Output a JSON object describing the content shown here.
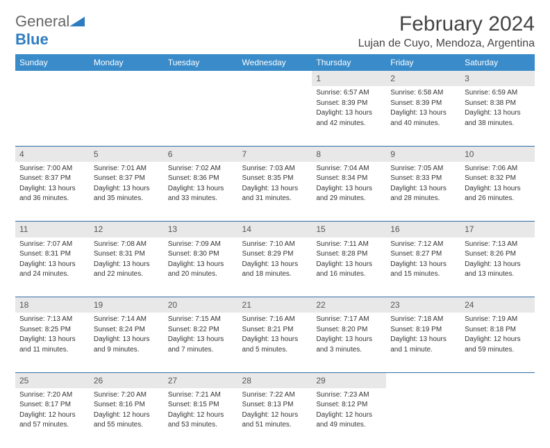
{
  "logo": {
    "general": "General",
    "blue": "Blue"
  },
  "title": "February 2024",
  "location": "Lujan de Cuyo, Mendoza, Argentina",
  "day_headers": [
    "Sunday",
    "Monday",
    "Tuesday",
    "Wednesday",
    "Thursday",
    "Friday",
    "Saturday"
  ],
  "colors": {
    "header_bg": "#3a8bc9",
    "header_text": "#ffffff",
    "daynum_bg": "#e8e8e8",
    "row_divider": "#2e6da4",
    "logo_blue": "#2e7cc0"
  },
  "weeks": [
    [
      null,
      null,
      null,
      null,
      {
        "n": "1",
        "sr": "Sunrise: 6:57 AM",
        "ss": "Sunset: 8:39 PM",
        "d1": "Daylight: 13 hours",
        "d2": "and 42 minutes."
      },
      {
        "n": "2",
        "sr": "Sunrise: 6:58 AM",
        "ss": "Sunset: 8:39 PM",
        "d1": "Daylight: 13 hours",
        "d2": "and 40 minutes."
      },
      {
        "n": "3",
        "sr": "Sunrise: 6:59 AM",
        "ss": "Sunset: 8:38 PM",
        "d1": "Daylight: 13 hours",
        "d2": "and 38 minutes."
      }
    ],
    [
      {
        "n": "4",
        "sr": "Sunrise: 7:00 AM",
        "ss": "Sunset: 8:37 PM",
        "d1": "Daylight: 13 hours",
        "d2": "and 36 minutes."
      },
      {
        "n": "5",
        "sr": "Sunrise: 7:01 AM",
        "ss": "Sunset: 8:37 PM",
        "d1": "Daylight: 13 hours",
        "d2": "and 35 minutes."
      },
      {
        "n": "6",
        "sr": "Sunrise: 7:02 AM",
        "ss": "Sunset: 8:36 PM",
        "d1": "Daylight: 13 hours",
        "d2": "and 33 minutes."
      },
      {
        "n": "7",
        "sr": "Sunrise: 7:03 AM",
        "ss": "Sunset: 8:35 PM",
        "d1": "Daylight: 13 hours",
        "d2": "and 31 minutes."
      },
      {
        "n": "8",
        "sr": "Sunrise: 7:04 AM",
        "ss": "Sunset: 8:34 PM",
        "d1": "Daylight: 13 hours",
        "d2": "and 29 minutes."
      },
      {
        "n": "9",
        "sr": "Sunrise: 7:05 AM",
        "ss": "Sunset: 8:33 PM",
        "d1": "Daylight: 13 hours",
        "d2": "and 28 minutes."
      },
      {
        "n": "10",
        "sr": "Sunrise: 7:06 AM",
        "ss": "Sunset: 8:32 PM",
        "d1": "Daylight: 13 hours",
        "d2": "and 26 minutes."
      }
    ],
    [
      {
        "n": "11",
        "sr": "Sunrise: 7:07 AM",
        "ss": "Sunset: 8:31 PM",
        "d1": "Daylight: 13 hours",
        "d2": "and 24 minutes."
      },
      {
        "n": "12",
        "sr": "Sunrise: 7:08 AM",
        "ss": "Sunset: 8:31 PM",
        "d1": "Daylight: 13 hours",
        "d2": "and 22 minutes."
      },
      {
        "n": "13",
        "sr": "Sunrise: 7:09 AM",
        "ss": "Sunset: 8:30 PM",
        "d1": "Daylight: 13 hours",
        "d2": "and 20 minutes."
      },
      {
        "n": "14",
        "sr": "Sunrise: 7:10 AM",
        "ss": "Sunset: 8:29 PM",
        "d1": "Daylight: 13 hours",
        "d2": "and 18 minutes."
      },
      {
        "n": "15",
        "sr": "Sunrise: 7:11 AM",
        "ss": "Sunset: 8:28 PM",
        "d1": "Daylight: 13 hours",
        "d2": "and 16 minutes."
      },
      {
        "n": "16",
        "sr": "Sunrise: 7:12 AM",
        "ss": "Sunset: 8:27 PM",
        "d1": "Daylight: 13 hours",
        "d2": "and 15 minutes."
      },
      {
        "n": "17",
        "sr": "Sunrise: 7:13 AM",
        "ss": "Sunset: 8:26 PM",
        "d1": "Daylight: 13 hours",
        "d2": "and 13 minutes."
      }
    ],
    [
      {
        "n": "18",
        "sr": "Sunrise: 7:13 AM",
        "ss": "Sunset: 8:25 PM",
        "d1": "Daylight: 13 hours",
        "d2": "and 11 minutes."
      },
      {
        "n": "19",
        "sr": "Sunrise: 7:14 AM",
        "ss": "Sunset: 8:24 PM",
        "d1": "Daylight: 13 hours",
        "d2": "and 9 minutes."
      },
      {
        "n": "20",
        "sr": "Sunrise: 7:15 AM",
        "ss": "Sunset: 8:22 PM",
        "d1": "Daylight: 13 hours",
        "d2": "and 7 minutes."
      },
      {
        "n": "21",
        "sr": "Sunrise: 7:16 AM",
        "ss": "Sunset: 8:21 PM",
        "d1": "Daylight: 13 hours",
        "d2": "and 5 minutes."
      },
      {
        "n": "22",
        "sr": "Sunrise: 7:17 AM",
        "ss": "Sunset: 8:20 PM",
        "d1": "Daylight: 13 hours",
        "d2": "and 3 minutes."
      },
      {
        "n": "23",
        "sr": "Sunrise: 7:18 AM",
        "ss": "Sunset: 8:19 PM",
        "d1": "Daylight: 13 hours",
        "d2": "and 1 minute."
      },
      {
        "n": "24",
        "sr": "Sunrise: 7:19 AM",
        "ss": "Sunset: 8:18 PM",
        "d1": "Daylight: 12 hours",
        "d2": "and 59 minutes."
      }
    ],
    [
      {
        "n": "25",
        "sr": "Sunrise: 7:20 AM",
        "ss": "Sunset: 8:17 PM",
        "d1": "Daylight: 12 hours",
        "d2": "and 57 minutes."
      },
      {
        "n": "26",
        "sr": "Sunrise: 7:20 AM",
        "ss": "Sunset: 8:16 PM",
        "d1": "Daylight: 12 hours",
        "d2": "and 55 minutes."
      },
      {
        "n": "27",
        "sr": "Sunrise: 7:21 AM",
        "ss": "Sunset: 8:15 PM",
        "d1": "Daylight: 12 hours",
        "d2": "and 53 minutes."
      },
      {
        "n": "28",
        "sr": "Sunrise: 7:22 AM",
        "ss": "Sunset: 8:13 PM",
        "d1": "Daylight: 12 hours",
        "d2": "and 51 minutes."
      },
      {
        "n": "29",
        "sr": "Sunrise: 7:23 AM",
        "ss": "Sunset: 8:12 PM",
        "d1": "Daylight: 12 hours",
        "d2": "and 49 minutes."
      },
      null,
      null
    ]
  ]
}
